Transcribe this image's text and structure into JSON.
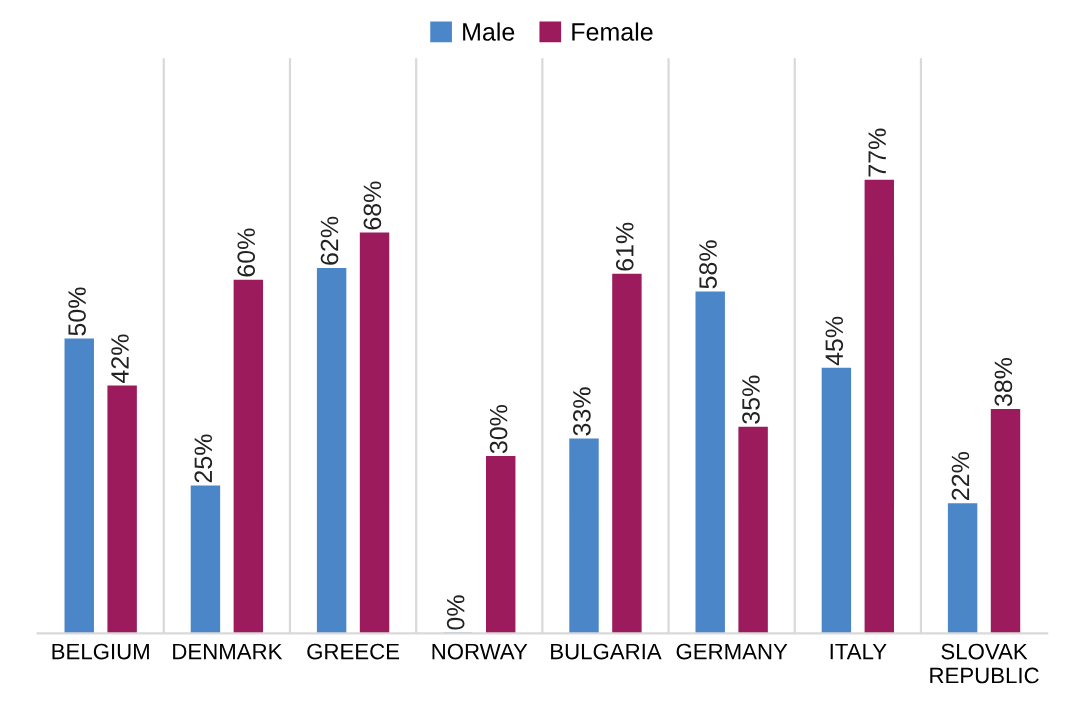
{
  "chart_data": {
    "type": "bar",
    "categories": [
      "BELGIUM",
      "DENMARK",
      "GREECE",
      "NORWAY",
      "BULGARIA",
      "GERMANY",
      "ITALY",
      "SLOVAK\nREPUBLIC"
    ],
    "series": [
      {
        "name": "Male",
        "color": "#4a86c8",
        "values": [
          50,
          25,
          62,
          0,
          33,
          58,
          45,
          22
        ],
        "value_labels": [
          "50%",
          "25%",
          "62%",
          "0%",
          "33%",
          "58%",
          "45%",
          "22%"
        ]
      },
      {
        "name": "Female",
        "color": "#9b1b5c",
        "values": [
          42,
          60,
          68,
          30,
          61,
          35,
          77,
          38
        ],
        "value_labels": [
          "42%",
          "60%",
          "68%",
          "30%",
          "61%",
          "35%",
          "77%",
          "38%"
        ]
      }
    ],
    "legend": "top",
    "grid": "x"
  }
}
